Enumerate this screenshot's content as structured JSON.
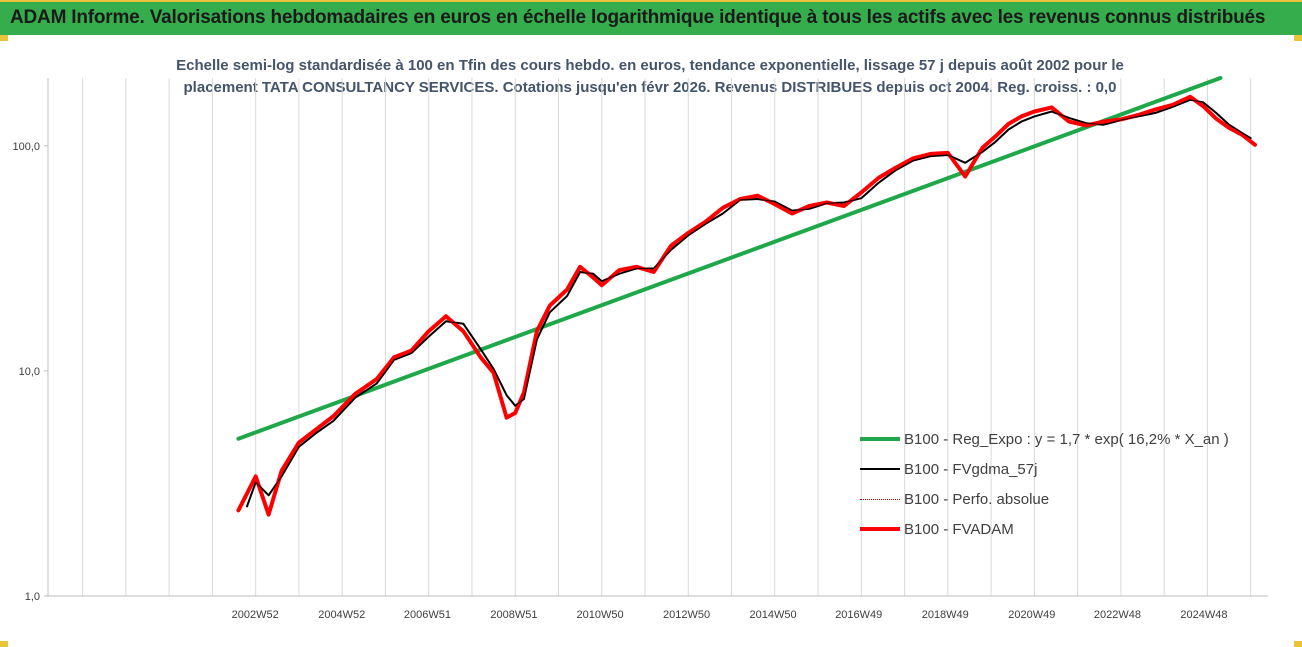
{
  "header": {
    "title": "ADAM Informe. Valorisations hebdomadaires en euros en échelle logarithmique identique à tous les actifs avec les revenus connus distribués"
  },
  "chart_data": {
    "type": "line",
    "title_line1": "Echelle semi-log standardisée à 100 en Tfin des cours hebdo. en euros, tendance exponentielle, lissage 57 j depuis août 2002 pour le",
    "title_line2": "placement TATA CONSULTANCY SERVICES. Cotations jusqu'en févr 2026. Revenus DISTRIBUES depuis oct 2004. Reg. croiss. : 0,0",
    "y_scale": "log",
    "ylim": [
      1,
      200
    ],
    "y_ticks": [
      1,
      10,
      100
    ],
    "y_tick_labels": [
      "1,0",
      "10,0",
      "100,0"
    ],
    "x_range": [
      1998.2,
      2026.4
    ],
    "x_ticks": [
      2002.99,
      2004.99,
      2006.97,
      2008.97,
      2010.96,
      2012.96,
      2014.96,
      2016.94,
      2018.94,
      2020.94,
      2022.92,
      2024.92
    ],
    "x_tick_labels": [
      "2002W52",
      "2004W52",
      "2006W51",
      "2008W51",
      "2010W50",
      "2012W50",
      "2014W50",
      "2016W49",
      "2018W49",
      "2020W49",
      "2022W48",
      "2024W48"
    ],
    "grid": "vertical",
    "legend_position": "bottom-right",
    "series": [
      {
        "name": "B100 - Reg_Expo : y = 1,7 * exp( 16,2% *  X_an )",
        "color": "#1fa84a",
        "style": "solid-thick",
        "x": [
          2002.6,
          2025.3
        ],
        "y": [
          5.0,
          200
        ]
      },
      {
        "name": "B100 - FVgdma_57j",
        "color": "#000000",
        "style": "solid",
        "x": [
          2002.8,
          2003.0,
          2003.3,
          2003.6,
          2004.0,
          2004.4,
          2004.8,
          2005.3,
          2005.8,
          2006.2,
          2006.6,
          2007.0,
          2007.4,
          2007.8,
          2008.2,
          2008.5,
          2008.8,
          2009.0,
          2009.2,
          2009.5,
          2009.8,
          2010.2,
          2010.5,
          2010.8,
          2011.0,
          2011.4,
          2011.8,
          2012.2,
          2012.6,
          2013.0,
          2013.4,
          2013.8,
          2014.2,
          2014.6,
          2015.0,
          2015.4,
          2015.8,
          2016.2,
          2016.6,
          2017.0,
          2017.4,
          2017.8,
          2018.2,
          2018.6,
          2019.0,
          2019.4,
          2019.8,
          2020.1,
          2020.4,
          2020.7,
          2021.0,
          2021.4,
          2021.8,
          2022.2,
          2022.6,
          2023.0,
          2023.4,
          2023.8,
          2024.2,
          2024.6,
          2024.9,
          2025.2,
          2025.5,
          2025.8,
          2026.0
        ],
        "y": [
          2.5,
          3.2,
          2.8,
          3.4,
          4.6,
          5.3,
          6.0,
          7.6,
          8.8,
          11.2,
          12.0,
          14.2,
          16.6,
          16.2,
          12.5,
          10.2,
          7.8,
          7.0,
          7.5,
          13.8,
          18.2,
          21.5,
          27.5,
          27.0,
          25.0,
          27.0,
          28.5,
          28.5,
          34.5,
          40.0,
          45.0,
          50.0,
          57.5,
          58.0,
          56.5,
          51.5,
          52.5,
          55.5,
          56.0,
          58.5,
          68.5,
          78.0,
          86.0,
          90.0,
          91.0,
          84.0,
          94.0,
          104.0,
          118.0,
          128.0,
          135.0,
          142.0,
          133.0,
          126.0,
          124.0,
          130.0,
          135.0,
          140.0,
          149.0,
          160.0,
          156.0,
          140.0,
          124.0,
          114.0,
          108.0
        ]
      },
      {
        "name": "B100 - Perfo. absolue",
        "color": "#c00000",
        "style": "dotted",
        "x": [
          2002.6,
          2003.0,
          2003.3,
          2003.6,
          2004.0,
          2004.4,
          2004.8,
          2005.3,
          2005.8,
          2006.2,
          2006.6,
          2007.0,
          2007.4,
          2007.8,
          2008.2,
          2008.5,
          2008.8,
          2009.0,
          2009.2,
          2009.5,
          2009.8,
          2010.2,
          2010.5,
          2010.8,
          2011.0,
          2011.4,
          2011.8,
          2012.2,
          2012.6,
          2013.0,
          2013.4,
          2013.8,
          2014.2,
          2014.6,
          2015.0,
          2015.4,
          2015.8,
          2016.2,
          2016.6,
          2017.0,
          2017.4,
          2017.8,
          2018.2,
          2018.6,
          2019.0,
          2019.4,
          2019.8,
          2020.1,
          2020.4,
          2020.7,
          2021.0,
          2021.4,
          2021.8,
          2022.2,
          2022.6,
          2023.0,
          2023.4,
          2023.8,
          2024.2,
          2024.6,
          2024.9,
          2025.2,
          2025.5,
          2025.8,
          2026.1
        ],
        "y": [
          2.4,
          3.4,
          2.3,
          3.6,
          4.8,
          5.5,
          6.3,
          7.9,
          9.2,
          11.5,
          12.3,
          15.0,
          17.5,
          15.0,
          11.5,
          9.8,
          6.2,
          6.5,
          8.0,
          15.0,
          19.5,
          23.0,
          29.0,
          26.0,
          24.0,
          28.0,
          29.0,
          27.5,
          36.0,
          41.0,
          46.0,
          53.0,
          58.0,
          60.0,
          55.0,
          50.0,
          54.0,
          56.0,
          54.0,
          62.0,
          72.0,
          80.0,
          88.0,
          92.0,
          93.0,
          73.0,
          98.0,
          110.0,
          125.0,
          135.0,
          142.0,
          148.0,
          128.0,
          123.0,
          128.0,
          131.0,
          137.0,
          145.0,
          152.0,
          165.0,
          150.0,
          132.0,
          120.0,
          112.0,
          101.0
        ]
      },
      {
        "name": "B100 - FVADAM",
        "color": "#ff0000",
        "style": "solid-thick",
        "x": [
          2002.6,
          2003.0,
          2003.3,
          2003.6,
          2004.0,
          2004.4,
          2004.8,
          2005.3,
          2005.8,
          2006.2,
          2006.6,
          2007.0,
          2007.4,
          2007.8,
          2008.2,
          2008.5,
          2008.8,
          2009.0,
          2009.2,
          2009.5,
          2009.8,
          2010.2,
          2010.5,
          2010.8,
          2011.0,
          2011.4,
          2011.8,
          2012.2,
          2012.6,
          2013.0,
          2013.4,
          2013.8,
          2014.2,
          2014.6,
          2015.0,
          2015.4,
          2015.8,
          2016.2,
          2016.6,
          2017.0,
          2017.4,
          2017.8,
          2018.2,
          2018.6,
          2019.0,
          2019.4,
          2019.8,
          2020.1,
          2020.4,
          2020.7,
          2021.0,
          2021.4,
          2021.8,
          2022.2,
          2022.6,
          2023.0,
          2023.4,
          2023.8,
          2024.2,
          2024.6,
          2024.9,
          2025.2,
          2025.5,
          2025.8,
          2026.1
        ],
        "y": [
          2.4,
          3.4,
          2.3,
          3.6,
          4.8,
          5.5,
          6.3,
          7.9,
          9.2,
          11.5,
          12.3,
          15.0,
          17.5,
          15.0,
          11.5,
          9.8,
          6.2,
          6.5,
          8.0,
          15.0,
          19.5,
          23.0,
          29.0,
          26.0,
          24.0,
          28.0,
          29.0,
          27.5,
          36.0,
          41.0,
          46.0,
          53.0,
          58.0,
          60.0,
          55.0,
          50.0,
          54.0,
          56.0,
          54.0,
          62.0,
          72.0,
          80.0,
          88.0,
          92.0,
          93.0,
          73.0,
          98.0,
          110.0,
          125.0,
          135.0,
          142.0,
          148.0,
          128.0,
          123.0,
          128.0,
          131.0,
          137.0,
          145.0,
          152.0,
          165.0,
          150.0,
          132.0,
          120.0,
          112.0,
          101.0
        ]
      }
    ]
  }
}
